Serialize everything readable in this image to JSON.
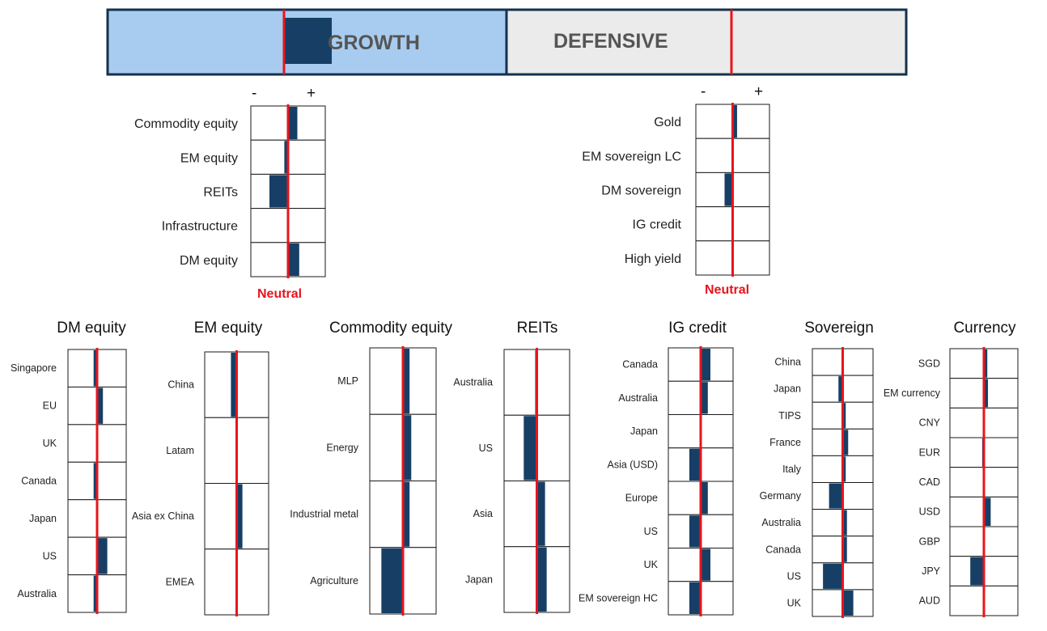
{
  "banner": {
    "growth_label": "GROWTH",
    "defensive_label": "DEFENSIVE",
    "growth_color": "#a8ccef",
    "defensive_color": "#ebebeb",
    "frame_color": "#14314f",
    "growth_position": 0.05
  },
  "colors": {
    "bar": "#173f66",
    "neutral": "#e8141c"
  },
  "scale": {
    "minus": "-",
    "plus": "+",
    "neutral_label": "Neutral"
  },
  "chart_data": [
    {
      "type": "bar",
      "orientation": "horizontal",
      "title": "",
      "group": "Growth",
      "xlim": [
        -1,
        1
      ],
      "neutral": 0,
      "categories": [
        "Commodity equity",
        "EM equity",
        "REITs",
        "Infrastructure",
        "DM equity"
      ],
      "values": [
        0.25,
        -0.1,
        -0.5,
        0,
        0.3
      ]
    },
    {
      "type": "bar",
      "orientation": "horizontal",
      "title": "",
      "group": "Defensive",
      "xlim": [
        -1,
        1
      ],
      "neutral": 0,
      "categories": [
        "Gold",
        "EM sovereign LC",
        "DM sovereign",
        "IG credit",
        "High yield"
      ],
      "values": [
        0.12,
        0,
        -0.22,
        0,
        0
      ]
    },
    {
      "type": "bar",
      "orientation": "horizontal",
      "title": "DM equity",
      "xlim": [
        -1,
        1
      ],
      "neutral": 0,
      "categories": [
        "Singapore",
        "EU",
        "UK",
        "Canada",
        "Japan",
        "US",
        "Australia"
      ],
      "values": [
        -0.12,
        0.2,
        0,
        -0.12,
        0,
        0.35,
        -0.12
      ]
    },
    {
      "type": "bar",
      "orientation": "horizontal",
      "title": "EM equity",
      "xlim": [
        -1,
        1
      ],
      "neutral": 0,
      "categories": [
        "China",
        "Latam",
        "Asia ex China",
        "EMEA"
      ],
      "values": [
        -0.18,
        0,
        0.18,
        0
      ]
    },
    {
      "type": "bar",
      "orientation": "horizontal",
      "title": "Commodity equity",
      "xlim": [
        -1,
        1
      ],
      "neutral": 0,
      "categories": [
        "MLP",
        "Energy",
        "Industrial metal",
        "Agriculture"
      ],
      "values": [
        0.2,
        0.25,
        0.2,
        -0.65
      ]
    },
    {
      "type": "bar",
      "orientation": "horizontal",
      "title": "REITs",
      "xlim": [
        -1,
        1
      ],
      "neutral": 0,
      "categories": [
        "Australia",
        "US",
        "Asia",
        "Japan"
      ],
      "values": [
        -0.05,
        -0.4,
        0.25,
        0.3
      ]
    },
    {
      "type": "bar",
      "orientation": "horizontal",
      "title": "IG credit",
      "xlim": [
        -1,
        1
      ],
      "neutral": 0,
      "categories": [
        "Canada",
        "Australia",
        "Japan",
        "Asia (USD)",
        "Europe",
        "US",
        "UK",
        "EM sovereign HC"
      ],
      "values": [
        0.3,
        0.22,
        0,
        -0.35,
        0.22,
        -0.35,
        0.3,
        -0.35
      ]
    },
    {
      "type": "bar",
      "orientation": "horizontal",
      "title": "Sovereign",
      "xlim": [
        -1,
        1
      ],
      "neutral": 0,
      "categories": [
        "China",
        "Japan",
        "TIPS",
        "France",
        "Italy",
        "Germany",
        "Australia",
        "Canada",
        "US",
        "UK"
      ],
      "values": [
        0,
        -0.14,
        0.1,
        0.18,
        0.1,
        -0.45,
        0.14,
        0.14,
        -0.65,
        0.35
      ]
    },
    {
      "type": "bar",
      "orientation": "horizontal",
      "title": "Currency",
      "xlim": [
        -1,
        1
      ],
      "neutral": 0,
      "categories": [
        "SGD",
        "EM currency",
        "CNY",
        "EUR",
        "CAD",
        "USD",
        "GBP",
        "JPY",
        "AUD"
      ],
      "values": [
        0.1,
        0.12,
        0,
        -0.05,
        0,
        0.2,
        0,
        -0.4,
        0
      ]
    }
  ]
}
